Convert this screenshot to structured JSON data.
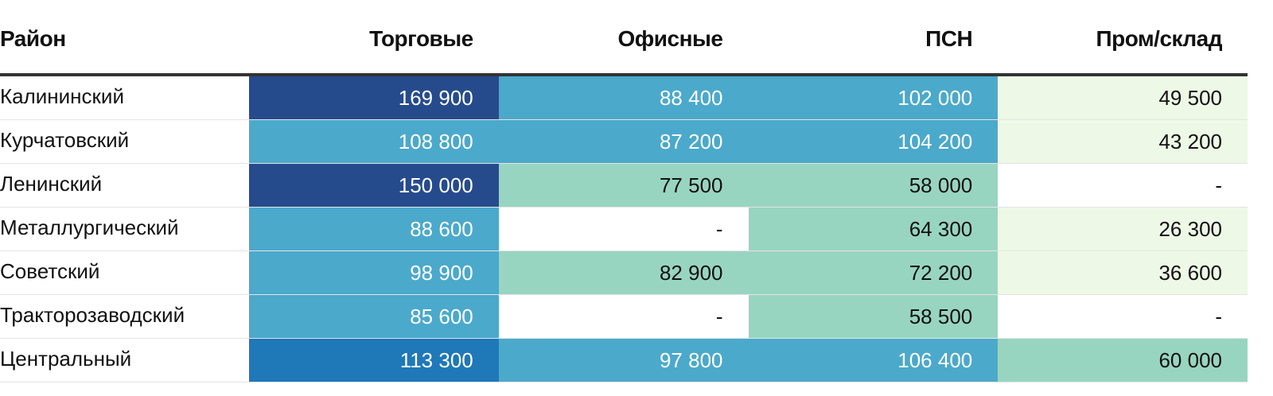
{
  "table": {
    "columns": [
      "Район",
      "Торговые",
      "Офисные",
      "ПСН",
      "Пром/склад"
    ],
    "rows": [
      [
        "Калининский",
        "169 900",
        "88 400",
        "102 000",
        "49 500"
      ],
      [
        "Курчатовский",
        "108 800",
        "87 200",
        "104 200",
        "43 200"
      ],
      [
        "Ленинский",
        "150 000",
        "77 500",
        "58 000",
        "-"
      ],
      [
        "Металлургический",
        "88 600",
        "-",
        "64 300",
        "26 300"
      ],
      [
        "Советский",
        "98 900",
        "82 900",
        "72 200",
        "36 600"
      ],
      [
        "Тракторозаводский",
        "85 600",
        "-",
        "58 500",
        "-"
      ],
      [
        "Центральный",
        "113 300",
        "97 800",
        "106 400",
        "60 000"
      ]
    ],
    "colors": [
      [
        "#ffffff",
        "#264b8c",
        "#4ba9cb",
        "#4ba9cb",
        "#eef8e6"
      ],
      [
        "#ffffff",
        "#4ba9cb",
        "#4ba9cb",
        "#4ba9cb",
        "#eef8e6"
      ],
      [
        "#ffffff",
        "#264b8c",
        "#98d5c0",
        "#98d5c0",
        "#ffffff"
      ],
      [
        "#ffffff",
        "#4ba9cb",
        "#ffffff",
        "#98d5c0",
        "#eef8e6"
      ],
      [
        "#ffffff",
        "#4ba9cb",
        "#98d5c0",
        "#98d5c0",
        "#eef8e6"
      ],
      [
        "#ffffff",
        "#4ba9cb",
        "#ffffff",
        "#98d5c0",
        "#ffffff"
      ],
      [
        "#ffffff",
        "#1f78b8",
        "#4ba9cb",
        "#4ba9cb",
        "#98d5c0"
      ]
    ]
  }
}
